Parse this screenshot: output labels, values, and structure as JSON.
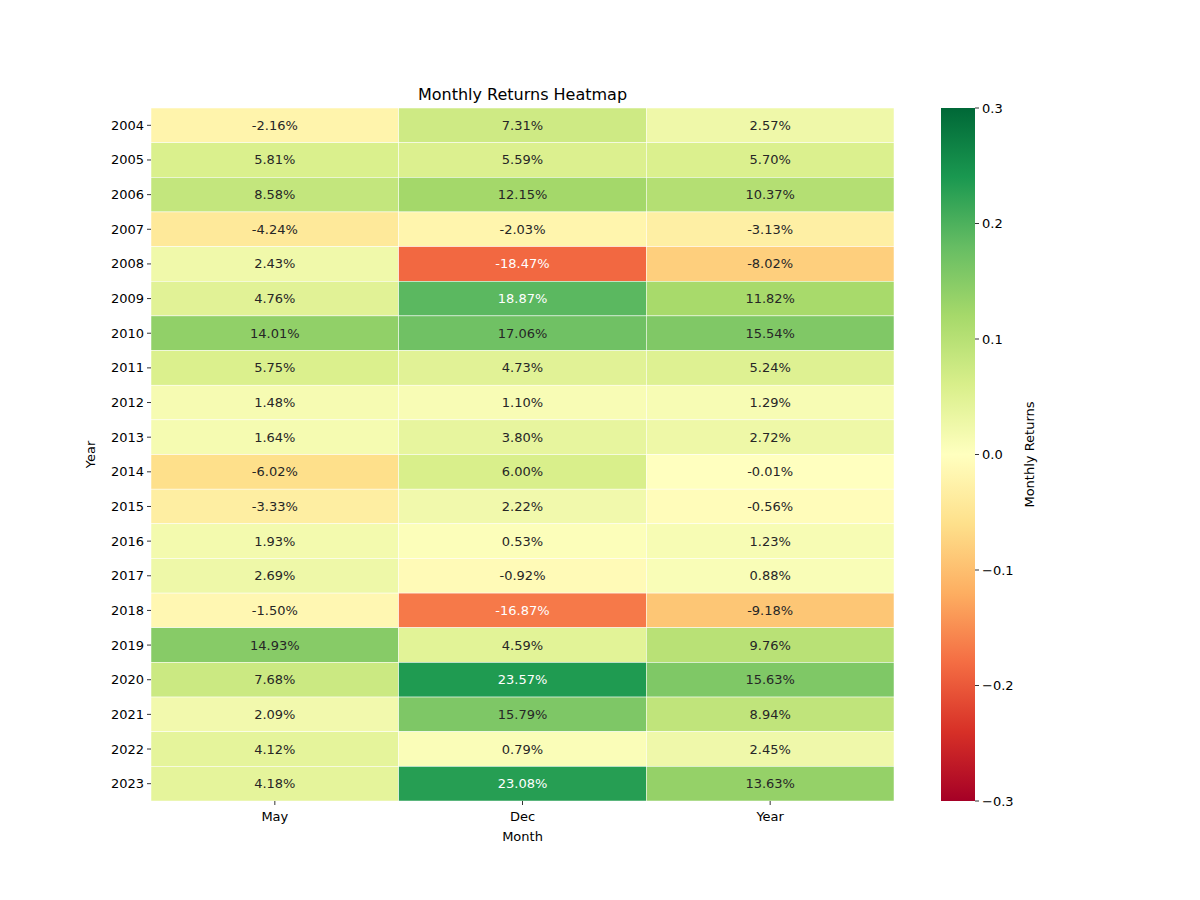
{
  "chart_data": {
    "type": "heatmap",
    "title": "Monthly Returns Heatmap",
    "x_label": "Month",
    "y_label": "Year",
    "categories": [
      "May",
      "Dec",
      "Year"
    ],
    "rows": [
      "2004",
      "2005",
      "2006",
      "2007",
      "2008",
      "2009",
      "2010",
      "2011",
      "2012",
      "2013",
      "2014",
      "2015",
      "2016",
      "2017",
      "2018",
      "2019",
      "2020",
      "2021",
      "2022",
      "2023"
    ],
    "values": [
      [
        -0.0216,
        0.0731,
        0.0257
      ],
      [
        0.0581,
        0.0559,
        0.057
      ],
      [
        0.0858,
        0.1215,
        0.1037
      ],
      [
        -0.0424,
        -0.0203,
        -0.0313
      ],
      [
        0.0243,
        -0.1847,
        -0.0802
      ],
      [
        0.0476,
        0.1887,
        0.1182
      ],
      [
        0.1401,
        0.1706,
        0.1554
      ],
      [
        0.0575,
        0.0473,
        0.0524
      ],
      [
        0.0148,
        0.011,
        0.0129
      ],
      [
        0.0164,
        0.038,
        0.0272
      ],
      [
        -0.0602,
        0.06,
        -0.0001
      ],
      [
        -0.0333,
        0.0222,
        -0.0056
      ],
      [
        0.0193,
        0.0053,
        0.0123
      ],
      [
        0.0269,
        -0.0092,
        0.0088
      ],
      [
        -0.015,
        -0.1687,
        -0.0918
      ],
      [
        0.1493,
        0.0459,
        0.0976
      ],
      [
        0.0768,
        0.2357,
        0.1563
      ],
      [
        0.0209,
        0.1579,
        0.0894
      ],
      [
        0.0412,
        0.0079,
        0.0245
      ],
      [
        0.0418,
        0.2308,
        0.1363
      ]
    ],
    "value_labels": [
      [
        "-2.16%",
        "7.31%",
        "2.57%"
      ],
      [
        "5.81%",
        "5.59%",
        "5.70%"
      ],
      [
        "8.58%",
        "12.15%",
        "10.37%"
      ],
      [
        "-4.24%",
        "-2.03%",
        "-3.13%"
      ],
      [
        "2.43%",
        "-18.47%",
        "-8.02%"
      ],
      [
        "4.76%",
        "18.87%",
        "11.82%"
      ],
      [
        "14.01%",
        "17.06%",
        "15.54%"
      ],
      [
        "5.75%",
        "4.73%",
        "5.24%"
      ],
      [
        "1.48%",
        "1.10%",
        "1.29%"
      ],
      [
        "1.64%",
        "3.80%",
        "2.72%"
      ],
      [
        "-6.02%",
        "6.00%",
        "-0.01%"
      ],
      [
        "-3.33%",
        "2.22%",
        "-0.56%"
      ],
      [
        "1.93%",
        "0.53%",
        "1.23%"
      ],
      [
        "2.69%",
        "-0.92%",
        "0.88%"
      ],
      [
        "-1.50%",
        "-16.87%",
        "-9.18%"
      ],
      [
        "14.93%",
        "4.59%",
        "9.76%"
      ],
      [
        "7.68%",
        "23.57%",
        "15.63%"
      ],
      [
        "2.09%",
        "15.79%",
        "8.94%"
      ],
      [
        "4.12%",
        "0.79%",
        "2.45%"
      ],
      [
        "4.18%",
        "23.08%",
        "13.63%"
      ]
    ],
    "data_labels": true,
    "colorbar": {
      "label": "Monthly Returns",
      "range": [
        -0.3,
        0.3
      ],
      "ticks": [
        {
          "value": -0.3,
          "label": "−0.3"
        },
        {
          "value": -0.2,
          "label": "−0.2"
        },
        {
          "value": -0.1,
          "label": "−0.1"
        },
        {
          "value": 0,
          "label": "0.0"
        },
        0.1,
        0.2,
        0.3
      ]
    }
  }
}
